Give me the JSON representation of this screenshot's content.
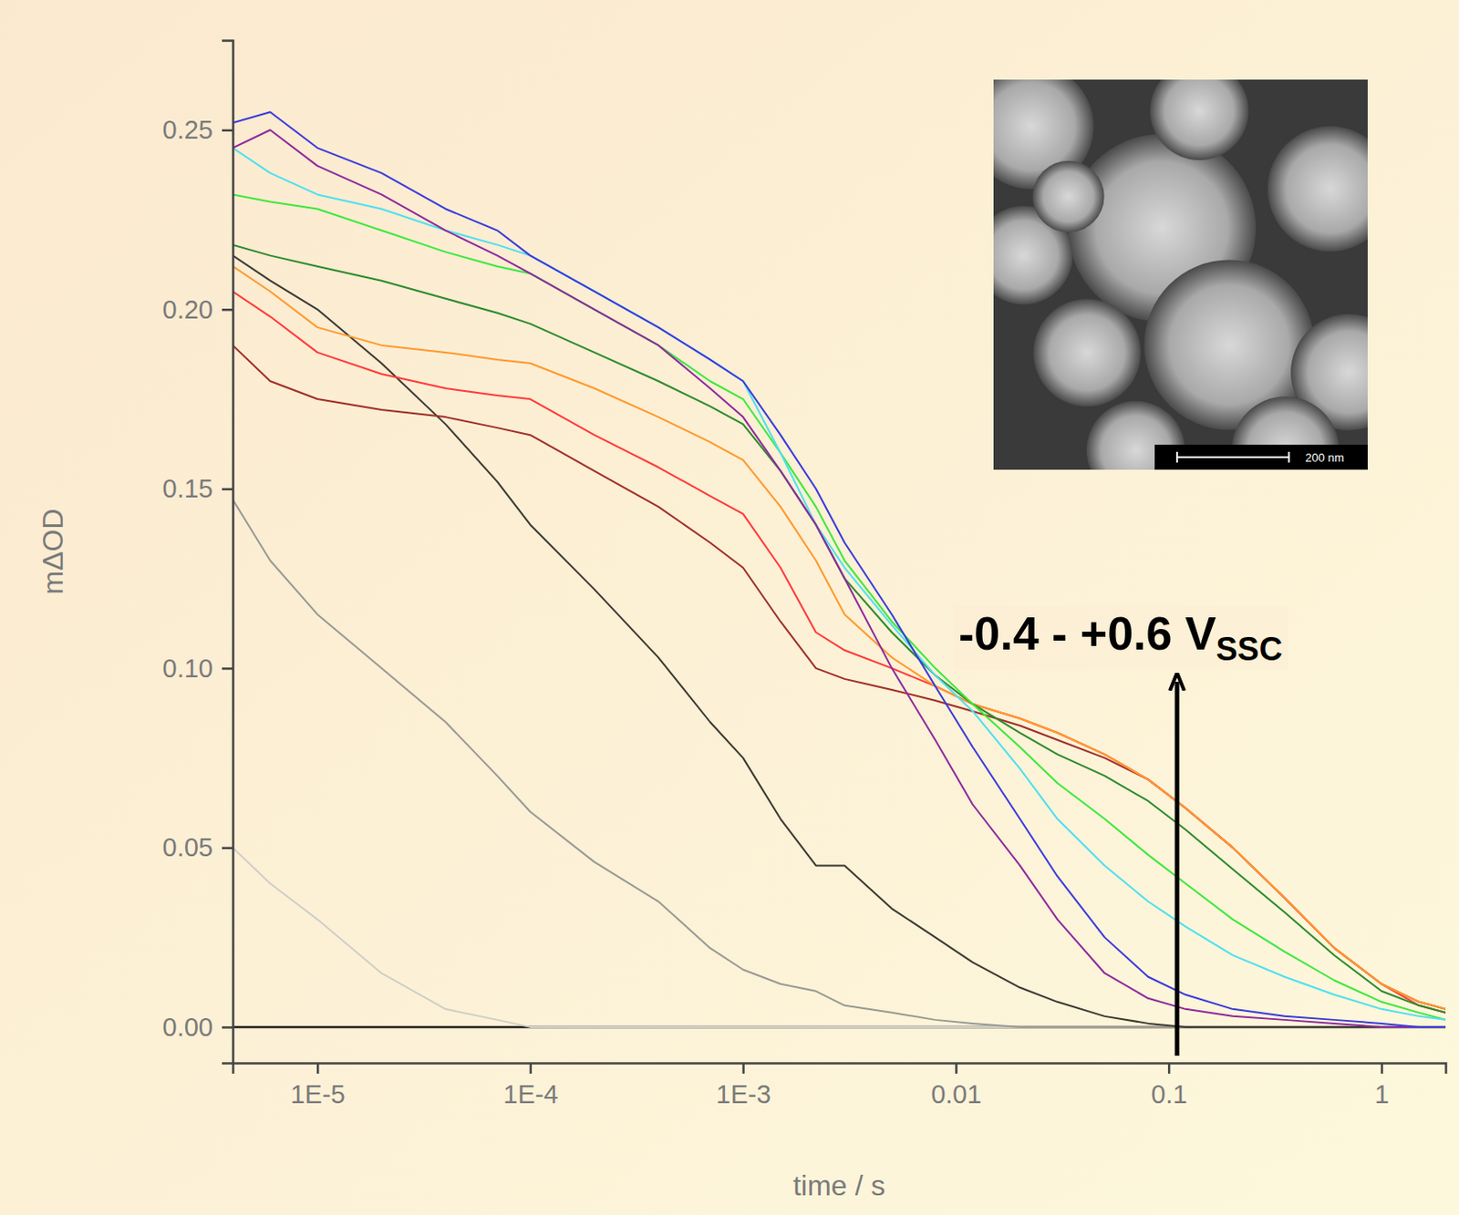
{
  "chart_data": {
    "type": "line",
    "log": "x",
    "x_label": "time / s",
    "y_label": "mΔOD",
    "xlim": [
      4e-06,
      2
    ],
    "ylim": [
      -0.01,
      0.275
    ],
    "xticks": [
      {
        "value": 1e-05,
        "label": "1E-5"
      },
      {
        "value": 0.0001,
        "label": "1E-4"
      },
      {
        "value": 0.001,
        "label": "1E-3"
      },
      0.01,
      0.1,
      1
    ],
    "yticks": [
      {
        "value": 0,
        "label": "0.00"
      },
      {
        "value": 0.05,
        "label": "0.05"
      },
      {
        "value": 0.1,
        "label": "0.10"
      },
      {
        "value": 0.15,
        "label": "0.15"
      },
      {
        "value": 0.2,
        "label": "0.20"
      },
      {
        "value": 0.25,
        "label": "0.25"
      }
    ],
    "x": [
      4e-06,
      6e-06,
      1e-05,
      2e-05,
      4e-05,
      7e-05,
      0.0001,
      0.0002,
      0.0004,
      0.0007,
      0.001,
      0.0015,
      0.0022,
      0.003,
      0.005,
      0.008,
      0.012,
      0.02,
      0.03,
      0.05,
      0.08,
      0.12,
      0.2,
      0.35,
      0.6,
      1,
      1.5,
      2
    ],
    "series": [
      {
        "color": "#3b3bdc",
        "values": [
          0.252,
          0.255,
          0.245,
          0.238,
          0.228,
          0.222,
          0.215,
          0.205,
          0.195,
          0.186,
          0.18,
          0.165,
          0.15,
          0.135,
          0.115,
          0.095,
          0.078,
          0.058,
          0.042,
          0.025,
          0.014,
          0.009,
          0.005,
          0.003,
          0.002,
          0.001,
          0,
          0
        ]
      },
      {
        "color": "#8e2b9e",
        "values": [
          0.245,
          0.25,
          0.24,
          0.232,
          0.222,
          0.215,
          0.21,
          0.2,
          0.19,
          0.178,
          0.17,
          0.155,
          0.14,
          0.125,
          0.1,
          0.08,
          0.062,
          0.045,
          0.03,
          0.015,
          0.008,
          0.005,
          0.003,
          0.002,
          0.001,
          0,
          0,
          0
        ]
      },
      {
        "color": "#4fe0f0",
        "values": [
          0.245,
          0.238,
          0.232,
          0.228,
          0.222,
          0.218,
          0.215,
          0.205,
          0.195,
          0.186,
          0.18,
          0.16,
          0.14,
          0.128,
          0.112,
          0.098,
          0.088,
          0.072,
          0.058,
          0.045,
          0.035,
          0.028,
          0.02,
          0.014,
          0.009,
          0.005,
          0.003,
          0.002
        ]
      },
      {
        "color": "#3ee83e",
        "values": [
          0.232,
          0.23,
          0.228,
          0.222,
          0.216,
          0.212,
          0.21,
          0.2,
          0.19,
          0.18,
          0.175,
          0.16,
          0.145,
          0.13,
          0.113,
          0.1,
          0.09,
          0.078,
          0.068,
          0.058,
          0.048,
          0.04,
          0.03,
          0.021,
          0.013,
          0.007,
          0.004,
          0.002
        ]
      },
      {
        "color": "#2e8b2e",
        "values": [
          0.218,
          0.215,
          0.212,
          0.208,
          0.203,
          0.199,
          0.196,
          0.188,
          0.18,
          0.173,
          0.168,
          0.155,
          0.14,
          0.125,
          0.11,
          0.098,
          0.09,
          0.082,
          0.076,
          0.07,
          0.063,
          0.055,
          0.044,
          0.032,
          0.02,
          0.01,
          0.006,
          0.004
        ]
      },
      {
        "color": "#ff9a2e",
        "values": [
          0.212,
          0.205,
          0.195,
          0.19,
          0.188,
          0.186,
          0.185,
          0.178,
          0.17,
          0.163,
          0.158,
          0.145,
          0.13,
          0.115,
          0.103,
          0.095,
          0.09,
          0.086,
          0.082,
          0.076,
          0.069,
          0.061,
          0.05,
          0.036,
          0.022,
          0.012,
          0.007,
          0.005
        ]
      },
      {
        "color": "#ff3b3b",
        "values": [
          0.205,
          0.198,
          0.188,
          0.182,
          0.178,
          0.176,
          0.175,
          0.165,
          0.156,
          0.148,
          0.143,
          0.128,
          0.11,
          0.105,
          0.1,
          0.095,
          0.09,
          0.086,
          0.082,
          0.076,
          0.069,
          0.061,
          0.05,
          0.036,
          0.022,
          0.012,
          0.006,
          0.004
        ]
      },
      {
        "color": "#a0302a",
        "values": [
          0.19,
          0.18,
          0.175,
          0.172,
          0.17,
          0.167,
          0.165,
          0.155,
          0.145,
          0.135,
          0.128,
          0.113,
          0.1,
          0.097,
          0.094,
          0.091,
          0.088,
          0.084,
          0.08,
          0.075,
          0.069,
          0.061,
          0.05,
          0.036,
          0.022,
          0.012,
          0.007,
          0.005
        ]
      },
      {
        "color": "#3d3a33",
        "values": [
          0.215,
          0.208,
          0.2,
          0.185,
          0.168,
          0.152,
          0.14,
          0.122,
          0.103,
          0.085,
          0.075,
          0.058,
          0.045,
          0.045,
          0.033,
          0.025,
          0.018,
          0.011,
          0.007,
          0.003,
          0.001,
          0,
          0,
          0,
          0,
          0,
          0,
          0
        ]
      },
      {
        "color": "#9a9a94",
        "values": [
          0.147,
          0.13,
          0.115,
          0.1,
          0.085,
          0.07,
          0.06,
          0.046,
          0.035,
          0.022,
          0.016,
          0.012,
          0.01,
          0.006,
          0.004,
          0.002,
          0.001,
          0,
          0,
          0,
          0,
          0,
          0,
          0,
          0,
          0,
          0,
          0
        ]
      },
      {
        "color": "#cfcfc8",
        "values": [
          0.05,
          0.04,
          0.03,
          0.015,
          0.005,
          0.002,
          0,
          0,
          0,
          0,
          0,
          0,
          0,
          0,
          0,
          0,
          0,
          0,
          0,
          0,
          0,
          0,
          0,
          0,
          0,
          0,
          0,
          0
        ]
      }
    ],
    "annotations": [
      {
        "text": "-0.4 - +0.6 V",
        "subscript": "SSC"
      }
    ],
    "inset": {
      "scale_bar_label": "200 nm"
    }
  }
}
